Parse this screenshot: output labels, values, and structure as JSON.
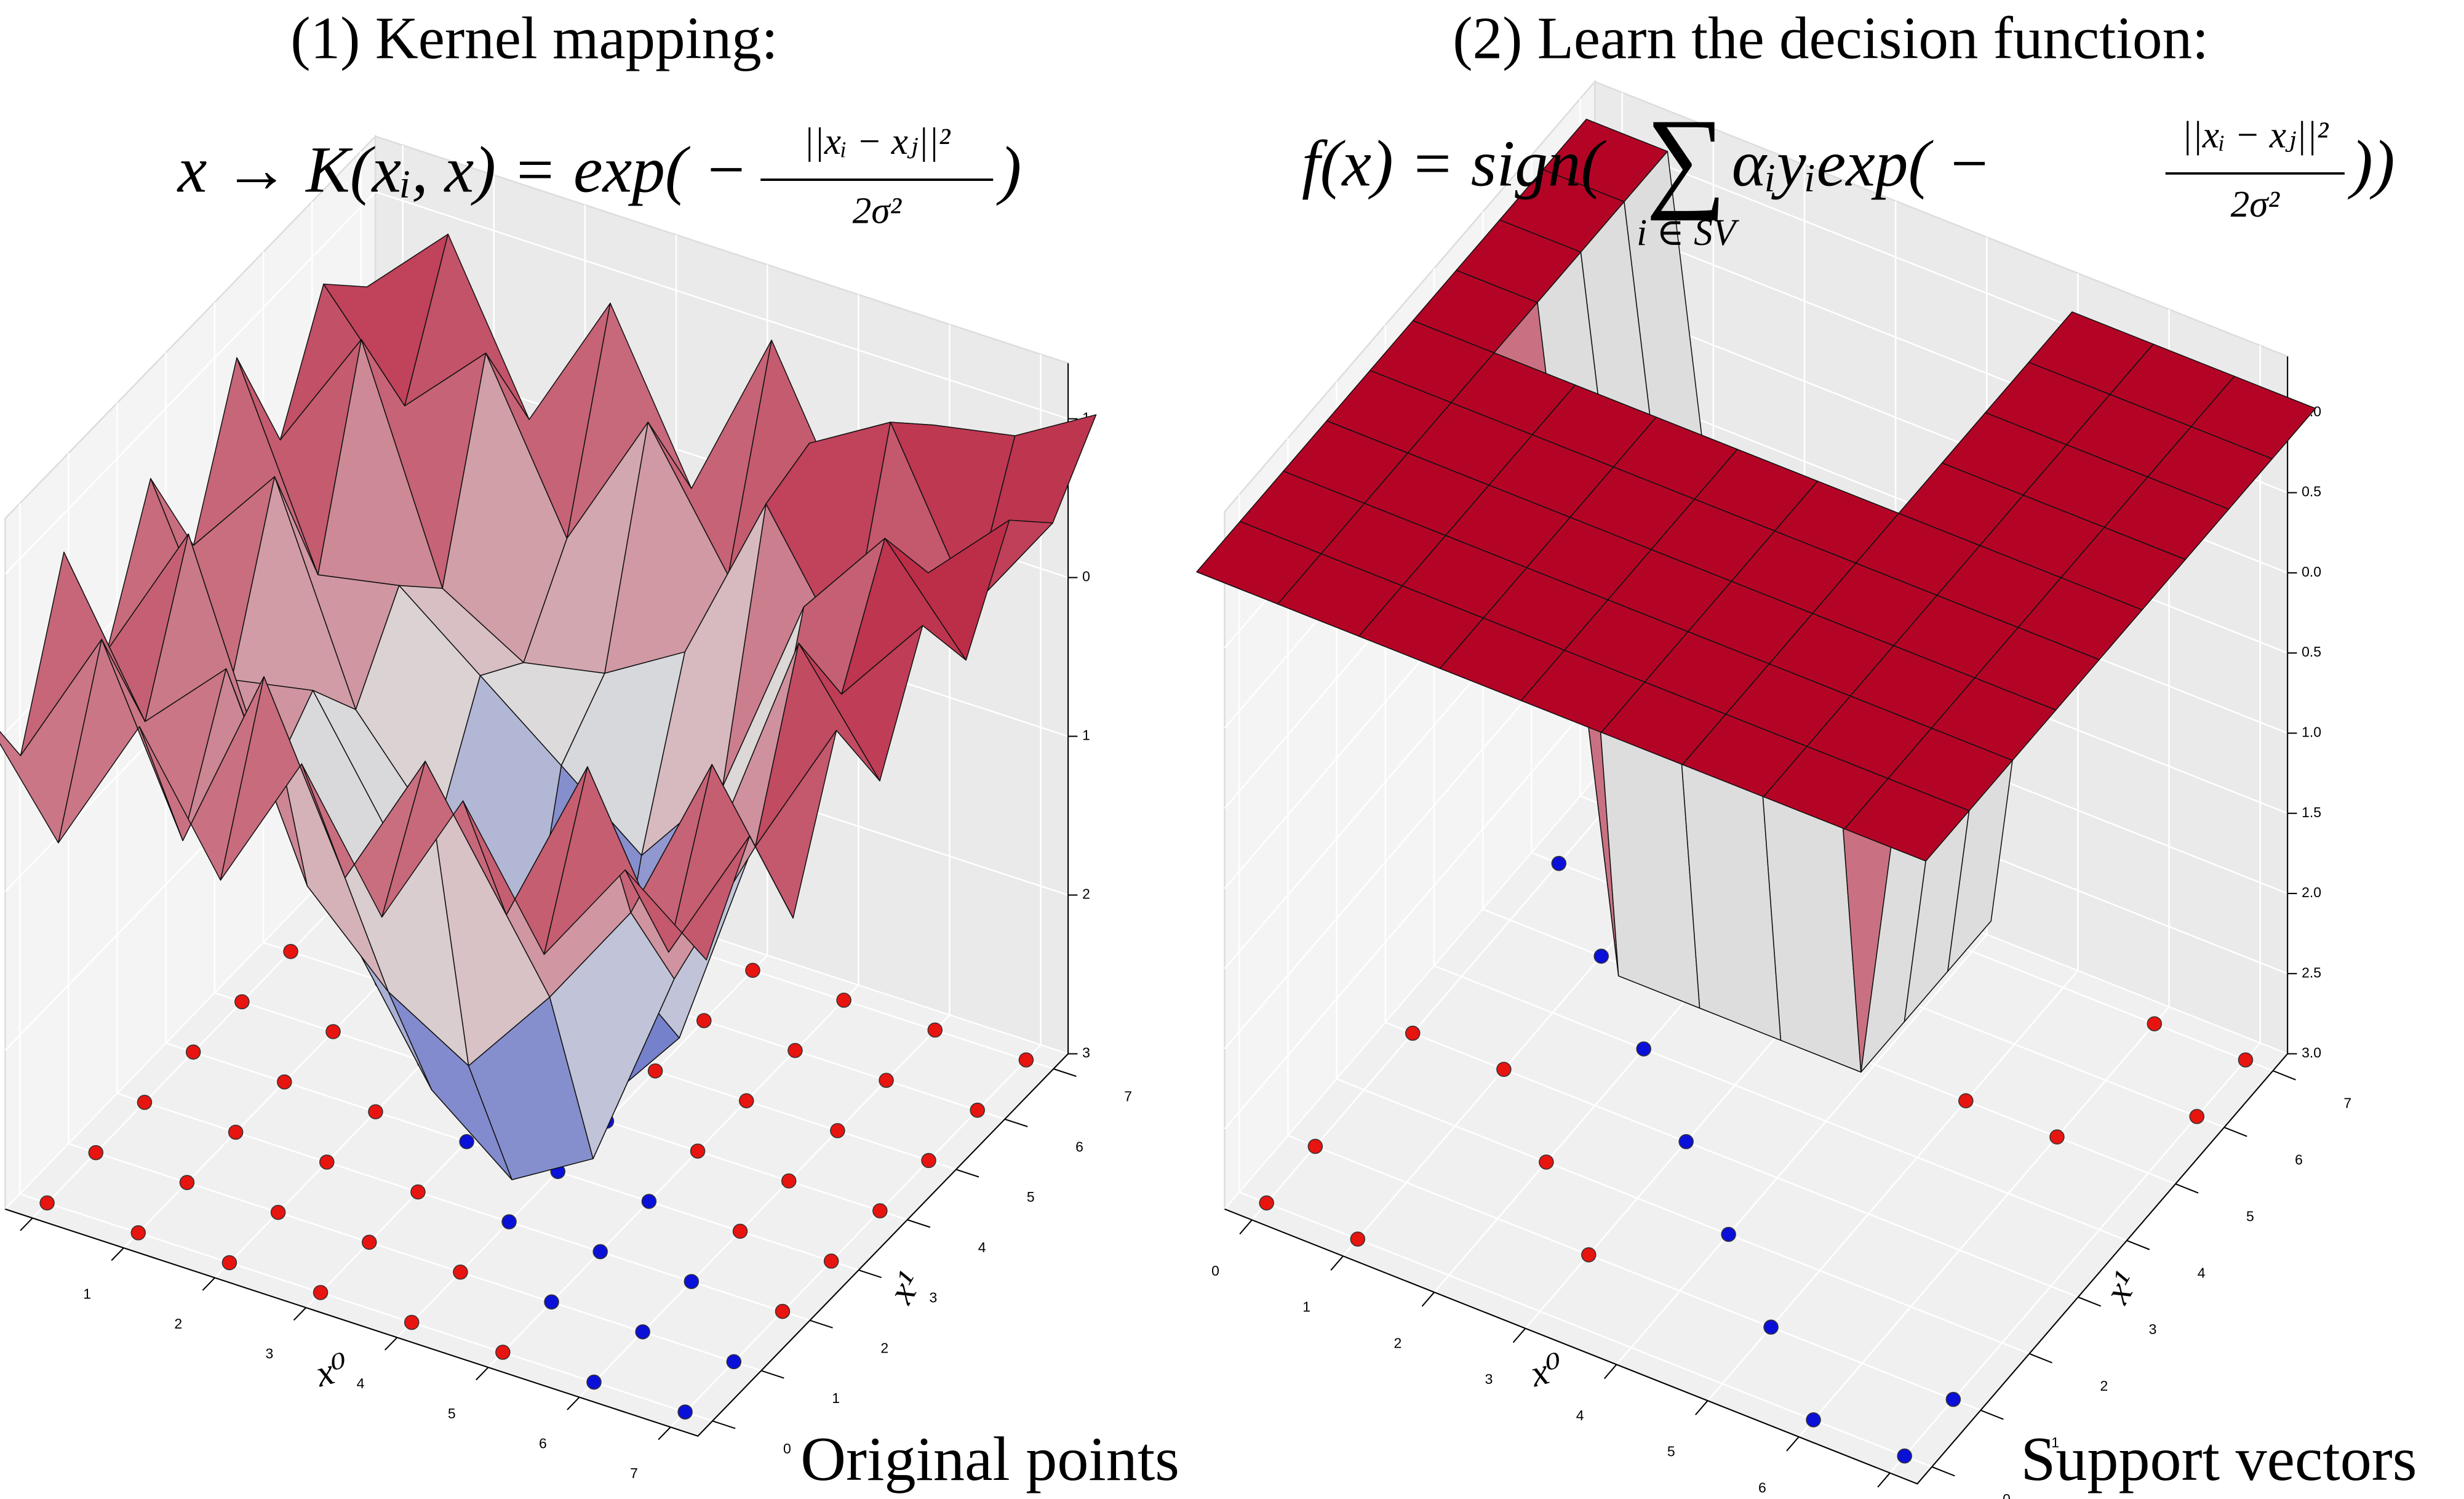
{
  "chart_data": [
    {
      "type": "surface3d",
      "title": "(1) Kernel mapping:",
      "formula": {
        "before": "x → K(xᵢ, x) = exp( −",
        "numerator": "||xᵢ − xⱼ||²",
        "denominator": "2σ²",
        "after": ")"
      },
      "caption": "Original points",
      "xlabel": "x⁰",
      "ylabel": "x¹",
      "xticks": [
        0,
        1,
        2,
        3,
        4,
        5,
        6,
        7
      ],
      "yticks": [
        0,
        1,
        2,
        3,
        4,
        5,
        6,
        7
      ],
      "zlim": [
        -3,
        1
      ],
      "zticks": [
        1,
        0,
        {
          "value": -1,
          "label": "1"
        },
        {
          "value": -2,
          "label": "2"
        },
        {
          "value": -3,
          "label": "3"
        }
      ],
      "grid": true,
      "cmap": {
        "low": "#3b4cc0",
        "mid": "#dddddd",
        "high": "#b40426"
      },
      "positive_color": "#e8140f",
      "negative_color": "#0a10d8",
      "points": {
        "x0": [
          0,
          1,
          2,
          3,
          4,
          5,
          6,
          7
        ],
        "x1": [
          0,
          1,
          2,
          3,
          4,
          5,
          6,
          7
        ],
        "labels": [
          [
            1,
            1,
            1,
            1,
            1,
            1,
            -1,
            -1
          ],
          [
            1,
            1,
            1,
            1,
            1,
            -1,
            -1,
            -1
          ],
          [
            1,
            1,
            1,
            1,
            -1,
            -1,
            -1,
            1
          ],
          [
            1,
            1,
            1,
            -1,
            -1,
            -1,
            1,
            1
          ],
          [
            1,
            1,
            -1,
            -1,
            -1,
            1,
            1,
            1
          ],
          [
            1,
            -1,
            -1,
            -1,
            1,
            1,
            1,
            1
          ],
          [
            -1,
            -1,
            -1,
            1,
            1,
            1,
            1,
            1
          ],
          [
            -1,
            -1,
            1,
            1,
            1,
            1,
            1,
            1
          ]
        ]
      },
      "surface": {
        "x": [
          -0.5,
          0.39,
          1.28,
          2.17,
          3.06,
          3.94,
          4.83,
          5.72,
          6.61,
          7.5
        ],
        "z": [
          [
            0.2,
            -0.4,
            0.6,
            -0.3,
            0.5,
            -0.2,
            0.7,
            -0.1,
            0.6,
            0.3
          ],
          [
            -0.5,
            0.5,
            -0.3,
            0.6,
            -0.6,
            0.4,
            -0.5,
            0.7,
            0.0,
            0.8
          ],
          [
            0.4,
            -0.6,
            0.2,
            -0.8,
            -0.5,
            -0.9,
            -0.4,
            -0.7,
            0.5,
            -0.2
          ],
          [
            -0.4,
            0.6,
            -1.0,
            -1.6,
            -1.3,
            -1.5,
            -0.8,
            -1.0,
            -0.5,
            0.7
          ],
          [
            0.5,
            -0.5,
            -1.5,
            -2.4,
            -1.8,
            -2.6,
            -1.2,
            -0.9,
            0.4,
            -0.3
          ],
          [
            -0.3,
            0.4,
            -1.8,
            -2.8,
            -2.2,
            -2.9,
            -1.6,
            -0.6,
            -0.4,
            0.8
          ],
          [
            0.6,
            -0.4,
            -1.2,
            -2.5,
            -1.7,
            -2.3,
            -1.0,
            0.5,
            0.6,
            -0.2
          ],
          [
            -0.2,
            0.7,
            -0.5,
            -1.2,
            -0.6,
            -0.8,
            0.3,
            -0.3,
            0.9,
            0.6
          ],
          [
            0.5,
            -0.3,
            0.6,
            -0.2,
            0.8,
            0.2,
            0.9,
            0.4,
            -0.1,
            0.7
          ],
          [
            0.1,
            0.6,
            -0.2,
            0.7,
            0.1,
            0.8,
            0.3,
            0.9,
            0.6,
            1.0
          ]
        ]
      }
    },
    {
      "type": "surface3d",
      "title": "(2) Learn the decision function:",
      "formula": {
        "before": "f(x) = sign(",
        "sum": "∑",
        "sum_sub": "i ∈ SV",
        "middle": "αᵢyᵢexp( −",
        "numerator": "||xᵢ − xⱼ||²",
        "denominator": "2σ²",
        "after": "))"
      },
      "caption": "Support vectors",
      "xlabel": "x⁰",
      "ylabel": "x¹",
      "xticks": [
        0,
        1,
        2,
        3,
        4,
        5,
        6,
        7
      ],
      "yticks": [
        0,
        1,
        2,
        3,
        4,
        5,
        6,
        7
      ],
      "zlim": [
        -3,
        1
      ],
      "zticks": [
        {
          "value": 1,
          "label": "1.0"
        },
        0.5,
        {
          "value": 0,
          "label": "0.0"
        },
        {
          "value": -0.5,
          "label": "0.5"
        },
        {
          "value": -1,
          "label": "1.0"
        },
        {
          "value": -1.5,
          "label": "1.5"
        },
        {
          "value": -2,
          "label": "2.0"
        },
        {
          "value": -2.5,
          "label": "2.5"
        },
        {
          "value": -3,
          "label": "3.0"
        }
      ],
      "grid": true,
      "cmap": {
        "low": "#3b4cc0",
        "mid": "#dddddd",
        "high": "#b40426"
      },
      "positive_color": "#e8140f",
      "negative_color": "#0a10d8",
      "points": {
        "x0": [
          0,
          1,
          2,
          3,
          4,
          5,
          6,
          7
        ],
        "x1": [
          0,
          1,
          2,
          3,
          4,
          5,
          6,
          7
        ],
        "labels": [
          [
            1,
            1,
            null,
            1,
            null,
            null,
            -1,
            null
          ],
          [
            1,
            null,
            null,
            1,
            null,
            -1,
            null,
            null
          ],
          [
            null,
            null,
            1,
            null,
            -1,
            null,
            null,
            null
          ],
          [
            null,
            1,
            null,
            -1,
            null,
            null,
            null,
            null
          ],
          [
            null,
            null,
            -1,
            null,
            null,
            null,
            null,
            null
          ],
          [
            null,
            -1,
            null,
            null,
            null,
            1,
            null,
            null
          ],
          [
            -1,
            null,
            null,
            null,
            null,
            1,
            null,
            1
          ],
          [
            -1,
            -1,
            null,
            null,
            null,
            null,
            1,
            1
          ]
        ]
      },
      "surface": {
        "x": [
          -0.5,
          0.39,
          1.28,
          2.17,
          3.06,
          3.94,
          4.83,
          5.72,
          6.61,
          7.5
        ],
        "z": [
          [
            1,
            1,
            1,
            1,
            1,
            1,
            1,
            1,
            1,
            1
          ],
          [
            1,
            1,
            1,
            1,
            1,
            1,
            1,
            1,
            1,
            1
          ],
          [
            1,
            1,
            1,
            1,
            1,
            1,
            -3,
            -3,
            -3,
            -3
          ],
          [
            1,
            1,
            1,
            1,
            1,
            1,
            -3,
            -3,
            -3,
            -3
          ],
          [
            1,
            1,
            1,
            1,
            1,
            1,
            -3,
            -3,
            -3,
            -3
          ],
          [
            1,
            1,
            1,
            1,
            1,
            1,
            -3,
            -3,
            -3,
            -3
          ],
          [
            1,
            1,
            1,
            1,
            1,
            1,
            1,
            1,
            1,
            1
          ],
          [
            1,
            1,
            1,
            1,
            1,
            1,
            1,
            1,
            1,
            1
          ],
          [
            1,
            1,
            1,
            1,
            1,
            1,
            1,
            1,
            1,
            1
          ],
          [
            1,
            1,
            1,
            1,
            1,
            1,
            1,
            1,
            1,
            1
          ]
        ]
      }
    }
  ]
}
